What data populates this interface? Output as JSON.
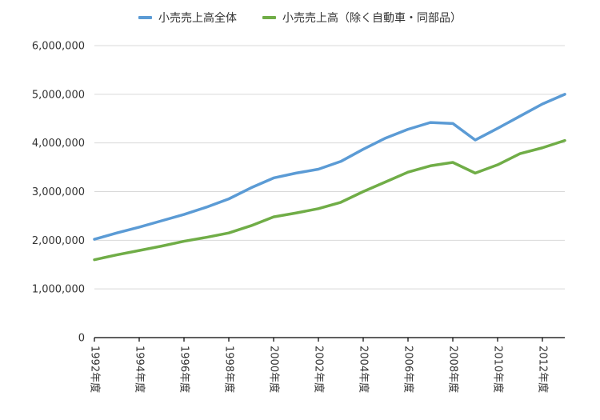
{
  "chart_data": {
    "type": "line",
    "title": "",
    "x": [
      1992,
      1993,
      1994,
      1995,
      1996,
      1997,
      1998,
      1999,
      2000,
      2001,
      2002,
      2003,
      2004,
      2005,
      2006,
      2007,
      2008,
      2009,
      2010,
      2011,
      2012,
      2013
    ],
    "x_tick_years": [
      1992,
      1994,
      1996,
      1998,
      2000,
      2002,
      2004,
      2006,
      2008,
      2010,
      2012
    ],
    "x_tick_labels": [
      "1992年度",
      "1994年度",
      "1996年度",
      "1998年度",
      "2000年度",
      "2002年度",
      "2004年度",
      "2006年度",
      "2008年度",
      "2010年度",
      "2012年度"
    ],
    "ylim": [
      0,
      6000000
    ],
    "y_ticks": [
      0,
      1000000,
      2000000,
      3000000,
      4000000,
      5000000,
      6000000
    ],
    "y_tick_labels": [
      "0",
      "1,000,000",
      "2,000,000",
      "3,000,000",
      "4,000,000",
      "5,000,000",
      "6,000,000"
    ],
    "grid": true,
    "legend_position": "top",
    "series": [
      {
        "name": "小売売上高全体",
        "color": "#5B9BD5",
        "values": [
          2020000,
          2150000,
          2270000,
          2400000,
          2530000,
          2680000,
          2850000,
          3080000,
          3280000,
          3380000,
          3460000,
          3620000,
          3870000,
          4100000,
          4280000,
          4420000,
          4400000,
          4060000,
          4300000,
          4550000,
          4800000,
          5000000
        ]
      },
      {
        "name": "小売売上高（除く自動車・同部品）",
        "color": "#70AD47",
        "values": [
          1600000,
          1700000,
          1790000,
          1880000,
          1980000,
          2060000,
          2150000,
          2300000,
          2480000,
          2560000,
          2650000,
          2780000,
          3000000,
          3200000,
          3400000,
          3530000,
          3600000,
          3380000,
          3550000,
          3780000,
          3900000,
          4050000
        ]
      }
    ],
    "colors": {
      "grid": "#D9D9D9",
      "axis": "#000000",
      "text": "#333333",
      "background": "#FFFFFF"
    }
  }
}
